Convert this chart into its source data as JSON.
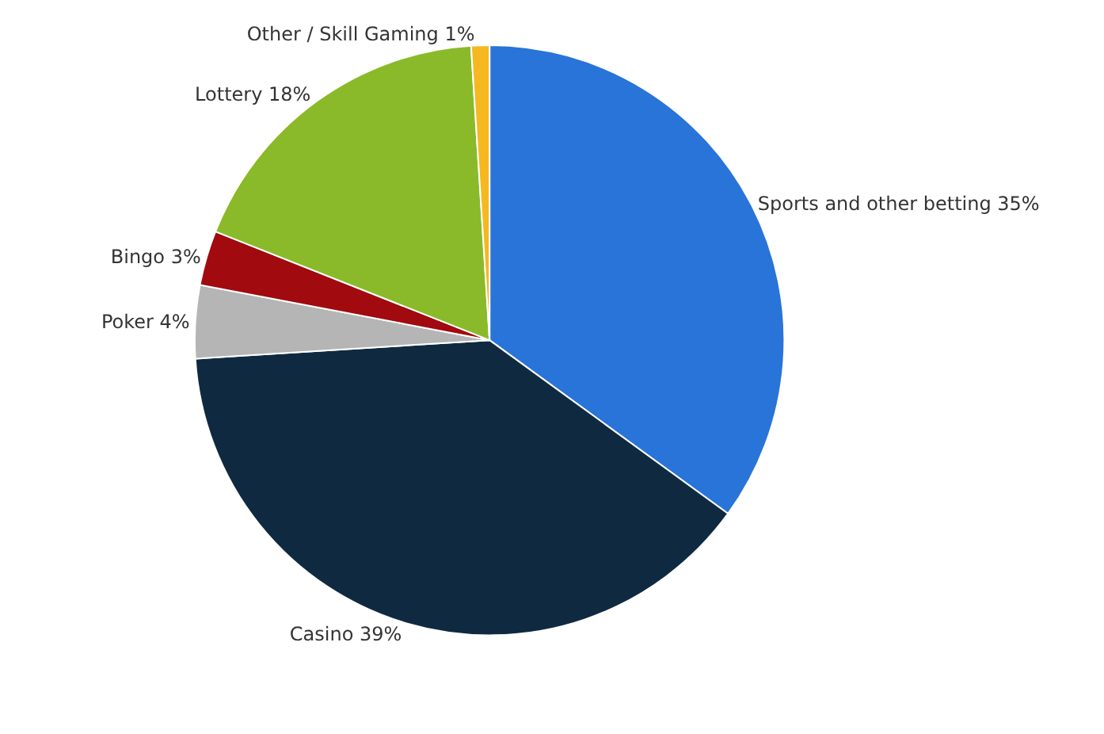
{
  "chart_data": {
    "type": "pie",
    "categories": [
      "Sports and other betting",
      "Casino",
      "Poker",
      "Bingo",
      "Lottery",
      "Other / Skill Gaming"
    ],
    "values": [
      35,
      39,
      4,
      3,
      18,
      1
    ],
    "value_labels": [
      "35%",
      "39%",
      "4%",
      "3%",
      "18%",
      "1%"
    ],
    "colors": [
      "#2874d9",
      "#0f2a40",
      "#b5b5b5",
      "#a10a0f",
      "#8aba29",
      "#f5b820"
    ],
    "legend": false
  }
}
